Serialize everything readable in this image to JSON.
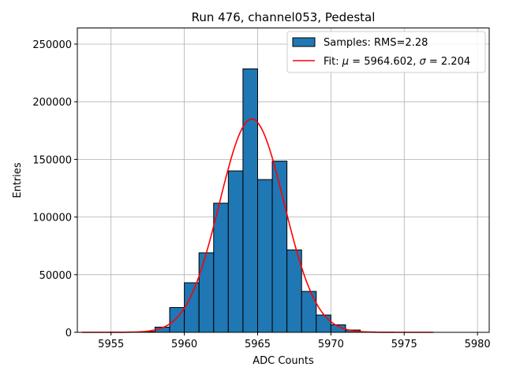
{
  "chart_data": {
    "type": "bar",
    "title": "Run 476, channel053, Pedestal",
    "xlabel": "ADC Counts",
    "ylabel": "Entries",
    "xlim": [
      5952.7,
      5980.8
    ],
    "ylim": [
      0,
      264000
    ],
    "grid": true,
    "legend_position": "top-right",
    "xticks": [
      5955,
      5960,
      5965,
      5970,
      5975,
      5980
    ],
    "yticks": [
      0,
      50000,
      100000,
      150000,
      200000,
      250000
    ],
    "bin_width": 1,
    "bins": [
      {
        "left": 5957,
        "value": 600
      },
      {
        "left": 5958,
        "value": 4500
      },
      {
        "left": 5959,
        "value": 21500
      },
      {
        "left": 5960,
        "value": 43000
      },
      {
        "left": 5961,
        "value": 69000
      },
      {
        "left": 5962,
        "value": 112000
      },
      {
        "left": 5963,
        "value": 140000
      },
      {
        "left": 5964,
        "value": 228500
      },
      {
        "left": 5965,
        "value": 132500
      },
      {
        "left": 5966,
        "value": 148500
      },
      {
        "left": 5967,
        "value": 71500
      },
      {
        "left": 5968,
        "value": 35500
      },
      {
        "left": 5969,
        "value": 15000
      },
      {
        "left": 5970,
        "value": 6500
      },
      {
        "left": 5971,
        "value": 2000
      },
      {
        "left": 5972,
        "value": 400
      }
    ],
    "fit": {
      "type": "gaussian",
      "mu": 5964.602,
      "sigma": 2.204,
      "amplitude": 185000,
      "x_range": [
        5953,
        5977
      ]
    },
    "series": [
      {
        "name": "Samples: RMS=2.28",
        "kind": "histogram",
        "color": "#1f77b4"
      },
      {
        "name": "Fit: μ = 5964.602, σ = 2.204",
        "kind": "line",
        "color": "#ff0000"
      }
    ],
    "legend": {
      "samples_label": "Samples: RMS=2.28",
      "fit_prefix": "Fit: ",
      "mu_symbol": "μ",
      "mu_value": " = 5964.602, ",
      "sigma_symbol": "σ",
      "sigma_value": " = 2.204"
    }
  }
}
